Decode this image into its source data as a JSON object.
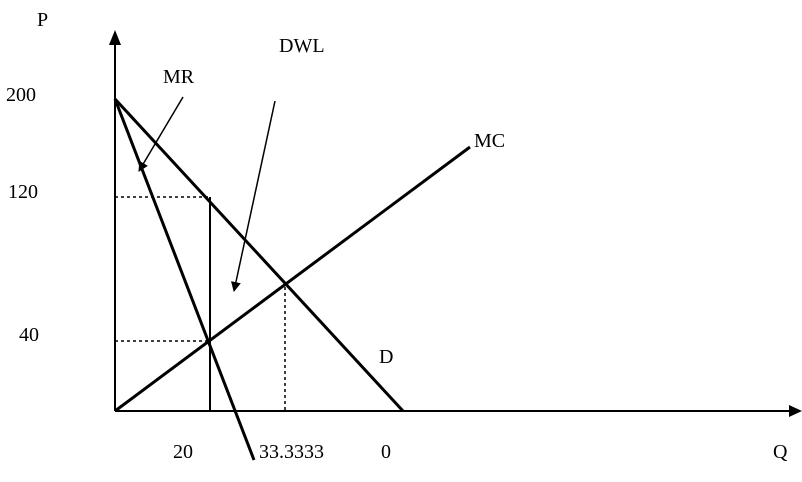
{
  "diagram": {
    "axis_y_label": "P",
    "axis_x_label": "Q",
    "price_ticks": [
      "200",
      "120",
      "40"
    ],
    "qty_ticks": [
      "20",
      "33.3333",
      "0"
    ],
    "curve_labels": {
      "mr": "MR",
      "dwl": "DWL",
      "mc": "MC",
      "d": "D"
    }
  }
}
